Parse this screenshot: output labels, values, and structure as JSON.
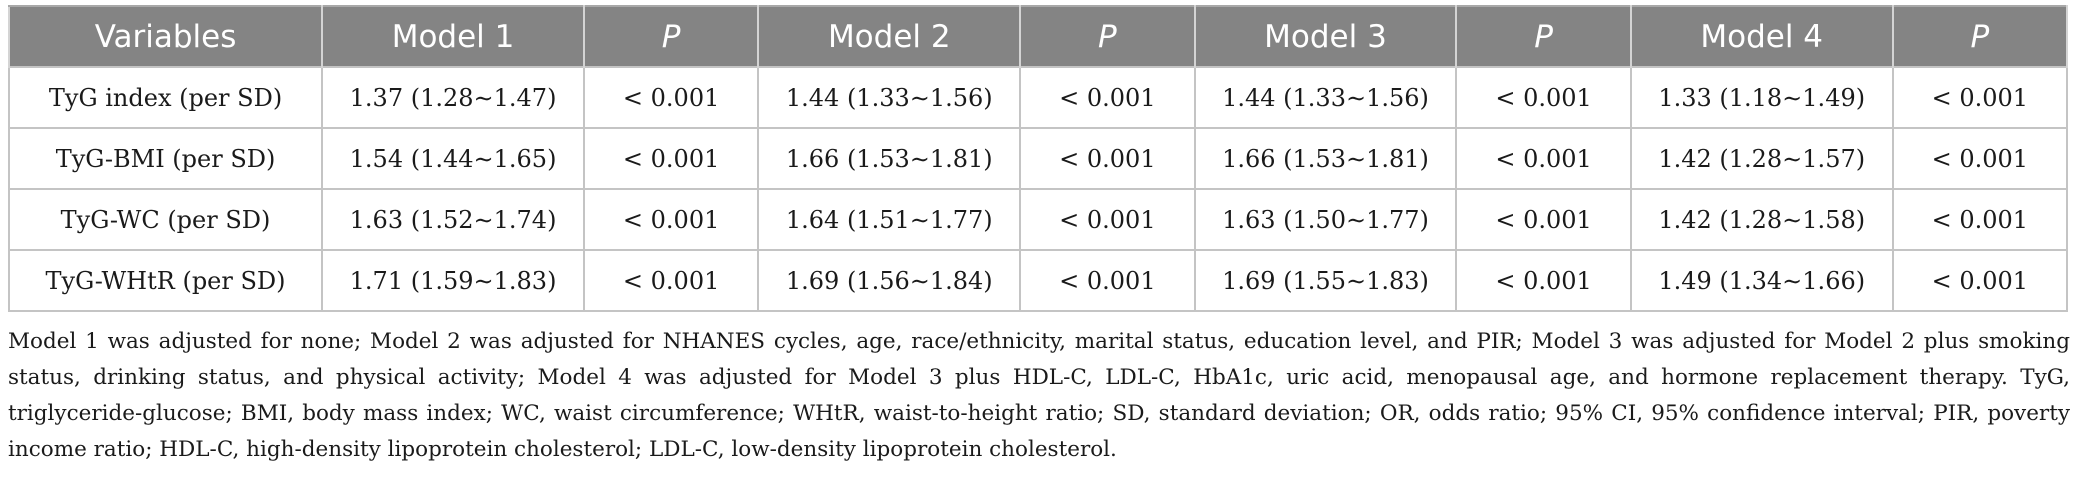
{
  "table": {
    "headers": [
      "Variables",
      "Model 1",
      "P",
      "Model 2",
      "P",
      "Model 3",
      "P",
      "Model 4",
      "P"
    ],
    "rows": [
      [
        "TyG index (per SD)",
        "1.37 (1.28∼1.47)",
        "< 0.001",
        "1.44 (1.33∼1.56)",
        "< 0.001",
        "1.44 (1.33∼1.56)",
        "< 0.001",
        "1.33 (1.18∼1.49)",
        "< 0.001"
      ],
      [
        "TyG-BMI (per SD)",
        "1.54 (1.44∼1.65)",
        "< 0.001",
        "1.66 (1.53∼1.81)",
        "< 0.001",
        "1.66 (1.53∼1.81)",
        "< 0.001",
        "1.42 (1.28∼1.57)",
        "< 0.001"
      ],
      [
        "TyG-WC (per SD)",
        "1.63 (1.52∼1.74)",
        "< 0.001",
        "1.64 (1.51∼1.77)",
        "< 0.001",
        "1.63 (1.50∼1.77)",
        "< 0.001",
        "1.42 (1.28∼1.58)",
        "< 0.001"
      ],
      [
        "TyG-WHtR (per SD)",
        "1.71 (1.59∼1.83)",
        "< 0.001",
        "1.69 (1.56∼1.84)",
        "< 0.001",
        "1.69 (1.55∼1.83)",
        "< 0.001",
        "1.49 (1.34∼1.66)",
        "< 0.001"
      ]
    ]
  },
  "footnote": "Model 1 was adjusted for none; Model 2 was adjusted for NHANES cycles, age, race/ethnicity, marital status, education level, and PIR; Model 3 was adjusted for Model 2 plus smoking status, drinking status, and physical activity; Model 4 was adjusted for Model 3 plus HDL-C, LDL-C, HbA1c, uric acid, menopausal age, and hormone replacement therapy. TyG, triglyceride-glucose; BMI, body mass index; WC, waist circumference; WHtR, waist-to-height ratio; SD, standard deviation; OR, odds ratio; 95% CI, 95% confidence interval; PIR, poverty income ratio; HDL-C, high-density lipoprotein cholesterol; LDL-C, low-density lipoprotein cholesterol.",
  "colors": {
    "header_bg": "#848484",
    "header_text": "#ffffff",
    "grid": "#c4c4c4"
  }
}
